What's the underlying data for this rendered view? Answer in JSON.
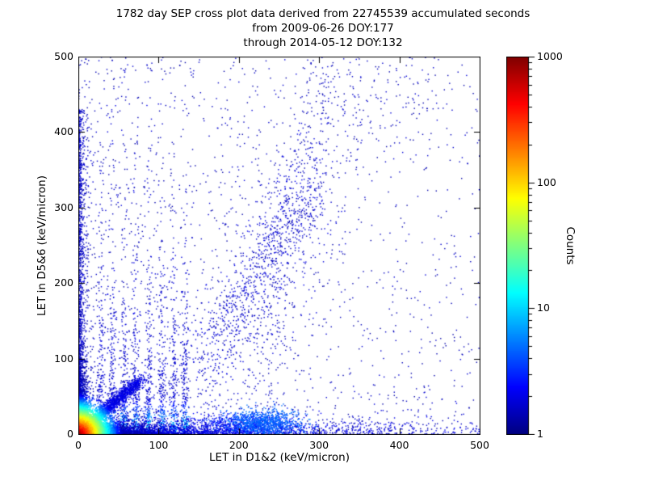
{
  "figure": {
    "title_line1": "1782 day SEP cross plot data derived from 22745539 accumulated seconds",
    "title_line2": "from 2009-06-26 DOY:177",
    "title_line3": "through 2014-05-12 DOY:132",
    "background": "#ffffff"
  },
  "chart_data": {
    "type": "scatter",
    "title": "1782 day SEP cross plot data derived from 22745539 accumulated seconds",
    "subtitle": [
      "from 2009-06-26 DOY:177",
      "through 2014-05-12 DOY:132"
    ],
    "xlabel": "LET in D1&2 (keV/micron)",
    "ylabel": "LET in D5&6 (keV/micron)",
    "xlim": [
      0,
      500
    ],
    "ylim": [
      0,
      500
    ],
    "xticks": [
      0,
      100,
      200,
      300,
      400,
      500
    ],
    "yticks": [
      0,
      100,
      200,
      300,
      400,
      500
    ],
    "grid": false,
    "colorbar": {
      "label": "Counts",
      "scale": "log",
      "range": [
        1,
        1000
      ],
      "ticks": [
        1,
        10,
        100,
        1000
      ],
      "colormap": "jet"
    },
    "point_color_low": "#00008b",
    "point_color_high": "#8b0000",
    "seed": 20140512,
    "density_features": [
      {
        "type": "sparse",
        "n": 1700,
        "x_pow": 1.6,
        "y_pow": 1.15,
        "t_min": 0.06
      },
      {
        "type": "band",
        "n": 800,
        "x_scale": 280,
        "y_scale": 12,
        "t_min": 0.07
      },
      {
        "type": "blob",
        "n": 130,
        "cx": 350,
        "cy": 445,
        "sx": 55,
        "sy": 40,
        "t_min": 0.06
      },
      {
        "type": "stream",
        "n": 900,
        "x0": 155,
        "y0": 80,
        "x1": 290,
        "y1": 340,
        "sx": 18,
        "sy": 26,
        "pow": 1,
        "t_min": 0.08
      },
      {
        "type": "stream",
        "n": 420,
        "x0": 222,
        "y0": 60,
        "x1": 325,
        "y1": 490,
        "sx": 22,
        "sy": 45,
        "pow": 1,
        "t_min": 0.07
      },
      {
        "type": "streaks",
        "xs": [
          28,
          42,
          57,
          71,
          88,
          104,
          119,
          133
        ],
        "n_each": 210,
        "sd": 2.6,
        "y_scale": 85,
        "t0": 0.4,
        "t_decay": 150,
        "t_min": 0.08
      },
      {
        "type": "band",
        "n": 2600,
        "x_scale": 120,
        "y_scale": 7,
        "t_min": 0.1
      },
      {
        "type": "blob",
        "n": 500,
        "cx": 205,
        "cy": 12,
        "sx": 30,
        "sy": 7,
        "t_min": 0.15
      },
      {
        "type": "blob",
        "n": 900,
        "cx": 232,
        "cy": 15,
        "sx": 22,
        "sy": 9,
        "t_min": 0.22
      },
      {
        "type": "axis_plume",
        "n": 1800,
        "scale_thin": 3,
        "spread_len": 430,
        "t0": 0.5,
        "t_decay": 170,
        "t_min": 0.07
      },
      {
        "type": "stream",
        "n": 2000,
        "x0": 0,
        "y0": 0,
        "x1": 78,
        "y1": 72,
        "sx": 4,
        "sy": 4,
        "pow": 1.4,
        "t_min": 0.1
      },
      {
        "type": "exp_core",
        "n": 2500,
        "scale_x": 26,
        "scale_y": 5
      },
      {
        "type": "exp_core",
        "n": 2500,
        "scale_x": 5,
        "scale_y": 26
      },
      {
        "type": "exp_core",
        "n": 9000,
        "scale_x": 7,
        "scale_y": 7
      }
    ]
  }
}
